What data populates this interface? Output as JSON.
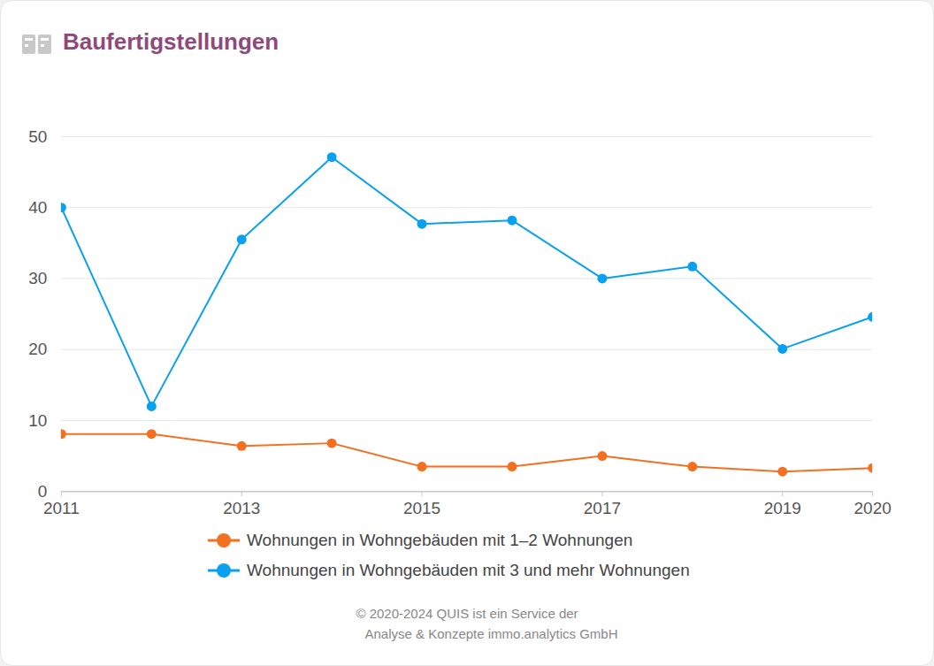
{
  "chart_data": {
    "type": "line",
    "title": "Baufertigstellungen",
    "x": [
      2011,
      2012,
      2013,
      2014,
      2015,
      2016,
      2017,
      2018,
      2019,
      2020
    ],
    "series": [
      {
        "name": "Wohnungen in Wohngebäuden mit 1–2 Wohnungen",
        "color": "#f37021",
        "marker": "circle",
        "values": [
          8.1,
          8.1,
          6.4,
          6.8,
          3.5,
          3.5,
          5.0,
          3.5,
          2.8,
          3.3
        ]
      },
      {
        "name": "Wohnungen in Wohngebäuden mit 3 und mehr Wohnungen",
        "color": "#0aa0f0",
        "marker": "circle",
        "values": [
          40.0,
          12.0,
          35.5,
          47.1,
          37.7,
          38.2,
          30.0,
          31.7,
          20.1,
          24.6
        ]
      }
    ],
    "xlim": [
      2011,
      2020
    ],
    "xticks": [
      2011,
      2013,
      2015,
      2017,
      2019,
      2020
    ],
    "ylim": [
      0,
      50
    ],
    "yticks": [
      0,
      10,
      20,
      30,
      40,
      50
    ],
    "grid": true,
    "legend": "bottom",
    "caption": [
      "© 2020-2024 QUIS ist ein Service der",
      "Analyse & Konzepte immo.analytics GmbH"
    ]
  }
}
